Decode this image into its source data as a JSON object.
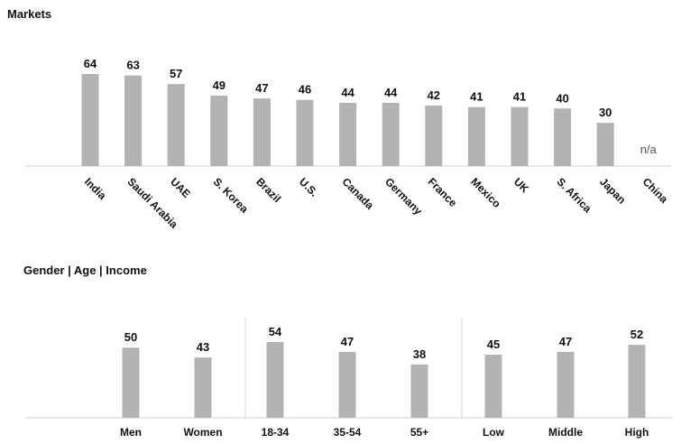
{
  "chart_data": [
    {
      "type": "bar",
      "title": "Markets",
      "categories": [
        "India",
        "Saudi Arabia",
        "UAE",
        "S. Korea",
        "Brazil",
        "U.S.",
        "Canada",
        "Germany",
        "France",
        "Mexico",
        "UK",
        "S. Africa",
        "Japan",
        "China"
      ],
      "values": [
        64,
        63,
        57,
        49,
        47,
        46,
        44,
        44,
        42,
        41,
        41,
        40,
        30,
        null
      ],
      "value_labels": [
        "64",
        "63",
        "57",
        "49",
        "47",
        "46",
        "44",
        "44",
        "42",
        "41",
        "41",
        "40",
        "30",
        "n/a"
      ],
      "bar_color": "#b3b3b3",
      "xlabel": "",
      "ylabel": "",
      "ylim": [
        0,
        70
      ],
      "grid": false
    },
    {
      "type": "bar",
      "title": "Gender | Age | Income",
      "groups": [
        {
          "categories": [
            "Men",
            "Women"
          ],
          "values": [
            50,
            43
          ]
        },
        {
          "categories": [
            "18-34",
            "35-54",
            "55+"
          ],
          "values": [
            54,
            47,
            38
          ]
        },
        {
          "categories": [
            "Low",
            "Middle",
            "High"
          ],
          "values": [
            45,
            47,
            52
          ]
        }
      ],
      "bar_color": "#b3b3b3",
      "xlabel": "",
      "ylabel": "",
      "ylim": [
        0,
        70
      ],
      "grid": false
    }
  ]
}
